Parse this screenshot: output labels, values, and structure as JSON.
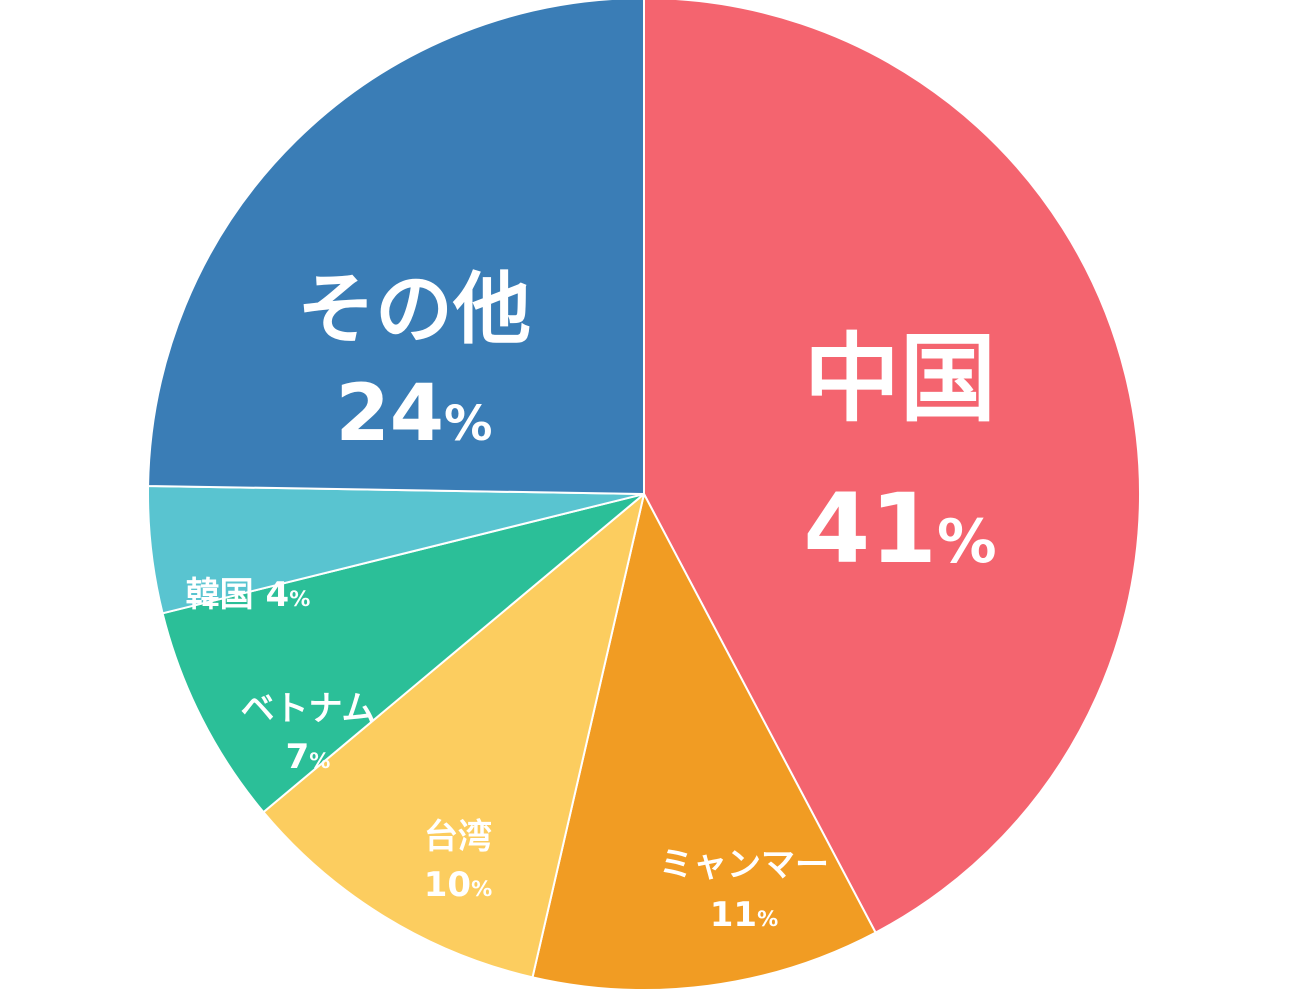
{
  "chart_data": {
    "type": "pie",
    "categories": [
      "中国",
      "ミャンマー",
      "台湾",
      "ベトナム",
      "韓国",
      "その他"
    ],
    "values": [
      41,
      11,
      10,
      7,
      4,
      24
    ],
    "unit": "%",
    "colors": [
      "#f4646f",
      "#f19c23",
      "#fccd5f",
      "#2bbf98",
      "#59c4d0",
      "#3a7db6"
    ],
    "start": "12 o'clock",
    "direction": "clockwise",
    "slice_border": "#ffffff",
    "labels": [
      {
        "name": "中国",
        "pct": "41",
        "sign": "%"
      },
      {
        "name": "ミャンマー",
        "pct": "11",
        "sign": "%"
      },
      {
        "name": "台湾",
        "pct": "10",
        "sign": "%"
      },
      {
        "name": "ベトナム",
        "pct": "7",
        "sign": "%"
      },
      {
        "name": "韓国",
        "pct": "4",
        "sign": "%"
      },
      {
        "name": "その他",
        "pct": "24",
        "sign": "%"
      }
    ]
  }
}
